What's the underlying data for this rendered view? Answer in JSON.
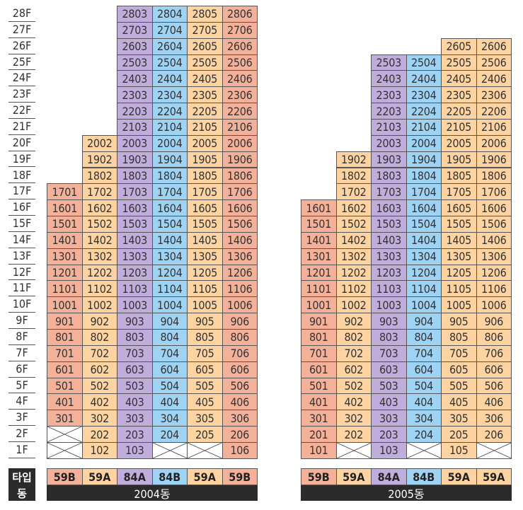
{
  "colors": {
    "59B": "#f4b199",
    "59A": "#fcd3a1",
    "84A": "#c1addc",
    "84B": "#9fd3f4"
  },
  "floors": [
    "28F",
    "27F",
    "26F",
    "25F",
    "24F",
    "23F",
    "22F",
    "21F",
    "20F",
    "19F",
    "18F",
    "17F",
    "16F",
    "15F",
    "14F",
    "13F",
    "12F",
    "11F",
    "10F",
    "9F",
    "8F",
    "7F",
    "6F",
    "5F",
    "4F",
    "3F",
    "2F",
    "1F"
  ],
  "labels": {
    "type_row": "타입",
    "dong_row": "동"
  },
  "buildings": [
    {
      "dong": "2004동",
      "lines": [
        {
          "type": "59B",
          "range": [
            3,
            17
          ],
          "empty": [
            1,
            2
          ]
        },
        {
          "type": "59A",
          "range": [
            1,
            20
          ],
          "empty": []
        },
        {
          "type": "84A",
          "range": [
            1,
            28
          ],
          "empty": []
        },
        {
          "type": "84B",
          "range": [
            2,
            28
          ],
          "empty": [
            1
          ]
        },
        {
          "type": "59A",
          "range": [
            2,
            28
          ],
          "empty": [
            1
          ]
        },
        {
          "type": "59B",
          "range": [
            1,
            28
          ],
          "empty": []
        }
      ]
    },
    {
      "dong": "2005동",
      "lines": [
        {
          "type": "59B",
          "range": [
            1,
            16
          ],
          "empty": []
        },
        {
          "type": "59A",
          "range": [
            2,
            19
          ],
          "empty": [
            1
          ]
        },
        {
          "type": "84A",
          "range": [
            1,
            25
          ],
          "empty": []
        },
        {
          "type": "84B",
          "range": [
            2,
            25
          ],
          "empty": [
            1
          ]
        },
        {
          "type": "59A",
          "range": [
            1,
            26
          ],
          "empty": []
        },
        {
          "type": "59A",
          "range": [
            2,
            26
          ],
          "empty": [
            1
          ]
        }
      ]
    }
  ]
}
